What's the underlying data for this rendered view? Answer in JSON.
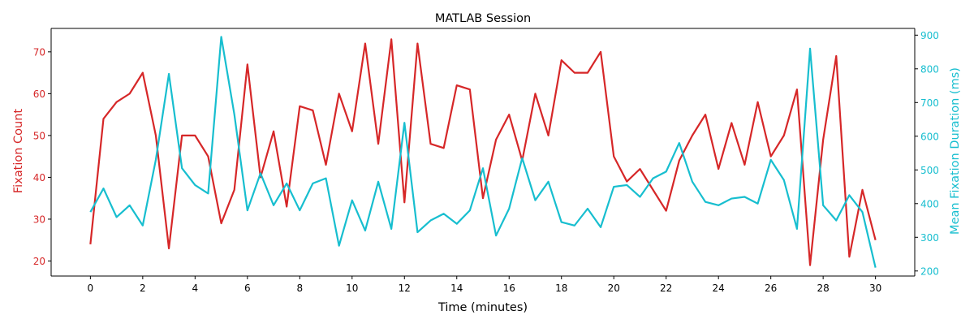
{
  "chart_data": {
    "type": "line",
    "title": "MATLAB Session",
    "xlabel": "Time (minutes)",
    "ylabel_left": "Fixation Count",
    "ylabel_right": "Mean Fixation Duration (ms)",
    "xlim": [
      -1.5,
      31.5
    ],
    "ylim_left": [
      16.4,
      75.6
    ],
    "ylim_right": [
      185,
      920
    ],
    "x_ticks": [
      0,
      2,
      4,
      6,
      8,
      10,
      12,
      14,
      16,
      18,
      20,
      22,
      24,
      26,
      28,
      30
    ],
    "y_ticks_left": [
      20,
      30,
      40,
      50,
      60,
      70
    ],
    "y_ticks_right": [
      200,
      300,
      400,
      500,
      600,
      700,
      800,
      900
    ],
    "grid": false,
    "x": [
      0,
      0.5,
      1,
      1.5,
      2,
      2.5,
      3,
      3.5,
      4,
      4.5,
      5,
      5.5,
      6,
      6.5,
      7,
      7.5,
      8,
      8.5,
      9,
      9.5,
      10,
      10.5,
      11,
      11.5,
      12,
      12.5,
      13,
      13.5,
      14,
      14.5,
      15,
      15.5,
      16,
      16.5,
      17,
      17.5,
      18,
      18.5,
      19,
      19.5,
      20,
      20.5,
      21,
      21.5,
      22,
      22.5,
      23,
      23.5,
      24,
      24.5,
      25,
      25.5,
      26,
      26.5,
      27,
      27.5,
      28,
      28.5,
      29,
      29.5,
      30
    ],
    "series": [
      {
        "name": "Fixation Count",
        "axis": "left",
        "color": "#d62728",
        "values": [
          24,
          54,
          58,
          60,
          65,
          50,
          23,
          50,
          50,
          45,
          29,
          37,
          67,
          40,
          51,
          33,
          57,
          56,
          43,
          60,
          51,
          72,
          48,
          73,
          34,
          72,
          48,
          47,
          62,
          61,
          35,
          49,
          55,
          44,
          60,
          50,
          68,
          65,
          65,
          70,
          45,
          39,
          42,
          37,
          32,
          44,
          50,
          55,
          42,
          53,
          43,
          58,
          45,
          50,
          61,
          19,
          49,
          69,
          21,
          37,
          25
        ]
      },
      {
        "name": "Mean Fixation Duration (ms)",
        "axis": "right",
        "color": "#17becf",
        "values": [
          375,
          445,
          360,
          395,
          335,
          530,
          785,
          505,
          455,
          430,
          895,
          665,
          380,
          490,
          395,
          460,
          380,
          460,
          475,
          275,
          410,
          320,
          465,
          325,
          640,
          315,
          350,
          370,
          340,
          380,
          505,
          305,
          385,
          535,
          410,
          465,
          345,
          335,
          385,
          330,
          450,
          455,
          420,
          475,
          495,
          580,
          465,
          405,
          395,
          415,
          420,
          400,
          530,
          470,
          325,
          860,
          395,
          350,
          425,
          375,
          210
        ]
      }
    ]
  }
}
